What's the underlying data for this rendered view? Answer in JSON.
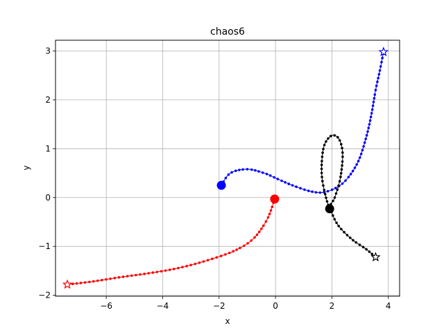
{
  "chart_data": {
    "type": "scatter",
    "title": "chaos6",
    "xlabel": "x",
    "ylabel": "y",
    "xlim": [
      -7.8,
      4.4
    ],
    "ylim": [
      -2.02,
      3.22
    ],
    "xticks": [
      -6,
      -4,
      -2,
      0,
      2,
      4
    ],
    "xtick_labels": [
      "−6",
      "−4",
      "−2",
      "0",
      "2",
      "4"
    ],
    "yticks": [
      -2,
      -1,
      0,
      1,
      2,
      3
    ],
    "ytick_labels": [
      "−2",
      "−1",
      "0",
      "1",
      "2",
      "3"
    ],
    "grid": true,
    "legend": false,
    "series": [
      {
        "color": "#0000ff",
        "start": [
          -1.92,
          0.25
        ],
        "end": [
          3.83,
          2.98
        ],
        "path": [
          [
            -1.92,
            0.25
          ],
          [
            -1.6,
            0.5
          ],
          [
            -1.0,
            0.58
          ],
          [
            -0.4,
            0.5
          ],
          [
            0.0,
            0.4
          ],
          [
            0.6,
            0.25
          ],
          [
            1.3,
            0.12
          ],
          [
            1.8,
            0.12
          ],
          [
            2.4,
            0.3
          ],
          [
            2.9,
            0.7
          ],
          [
            3.2,
            1.2
          ],
          [
            3.4,
            1.7
          ],
          [
            3.55,
            2.2
          ],
          [
            3.7,
            2.6
          ],
          [
            3.83,
            2.98
          ]
        ]
      },
      {
        "color": "#ff0000",
        "start": [
          -0.03,
          -0.03
        ],
        "end": [
          -7.38,
          -1.78
        ],
        "path": [
          [
            -0.03,
            -0.03
          ],
          [
            -0.3,
            -0.45
          ],
          [
            -0.8,
            -0.85
          ],
          [
            -1.5,
            -1.1
          ],
          [
            -2.5,
            -1.3
          ],
          [
            -3.5,
            -1.45
          ],
          [
            -4.5,
            -1.55
          ],
          [
            -5.5,
            -1.63
          ],
          [
            -6.5,
            -1.72
          ],
          [
            -7.38,
            -1.78
          ]
        ]
      },
      {
        "color": "#000000",
        "start": [
          1.92,
          -0.23
        ],
        "end": [
          3.55,
          -1.22
        ],
        "path": [
          [
            1.92,
            -0.23
          ],
          [
            1.8,
            -0.02
          ],
          [
            1.65,
            0.4
          ],
          [
            1.65,
            0.8
          ],
          [
            1.75,
            1.1
          ],
          [
            2.0,
            1.27
          ],
          [
            2.25,
            1.2
          ],
          [
            2.38,
            0.9
          ],
          [
            2.3,
            0.4
          ],
          [
            2.1,
            0.0
          ],
          [
            1.95,
            -0.2
          ],
          [
            2.2,
            -0.55
          ],
          [
            2.7,
            -0.85
          ],
          [
            3.2,
            -1.05
          ],
          [
            3.55,
            -1.22
          ]
        ]
      }
    ]
  }
}
